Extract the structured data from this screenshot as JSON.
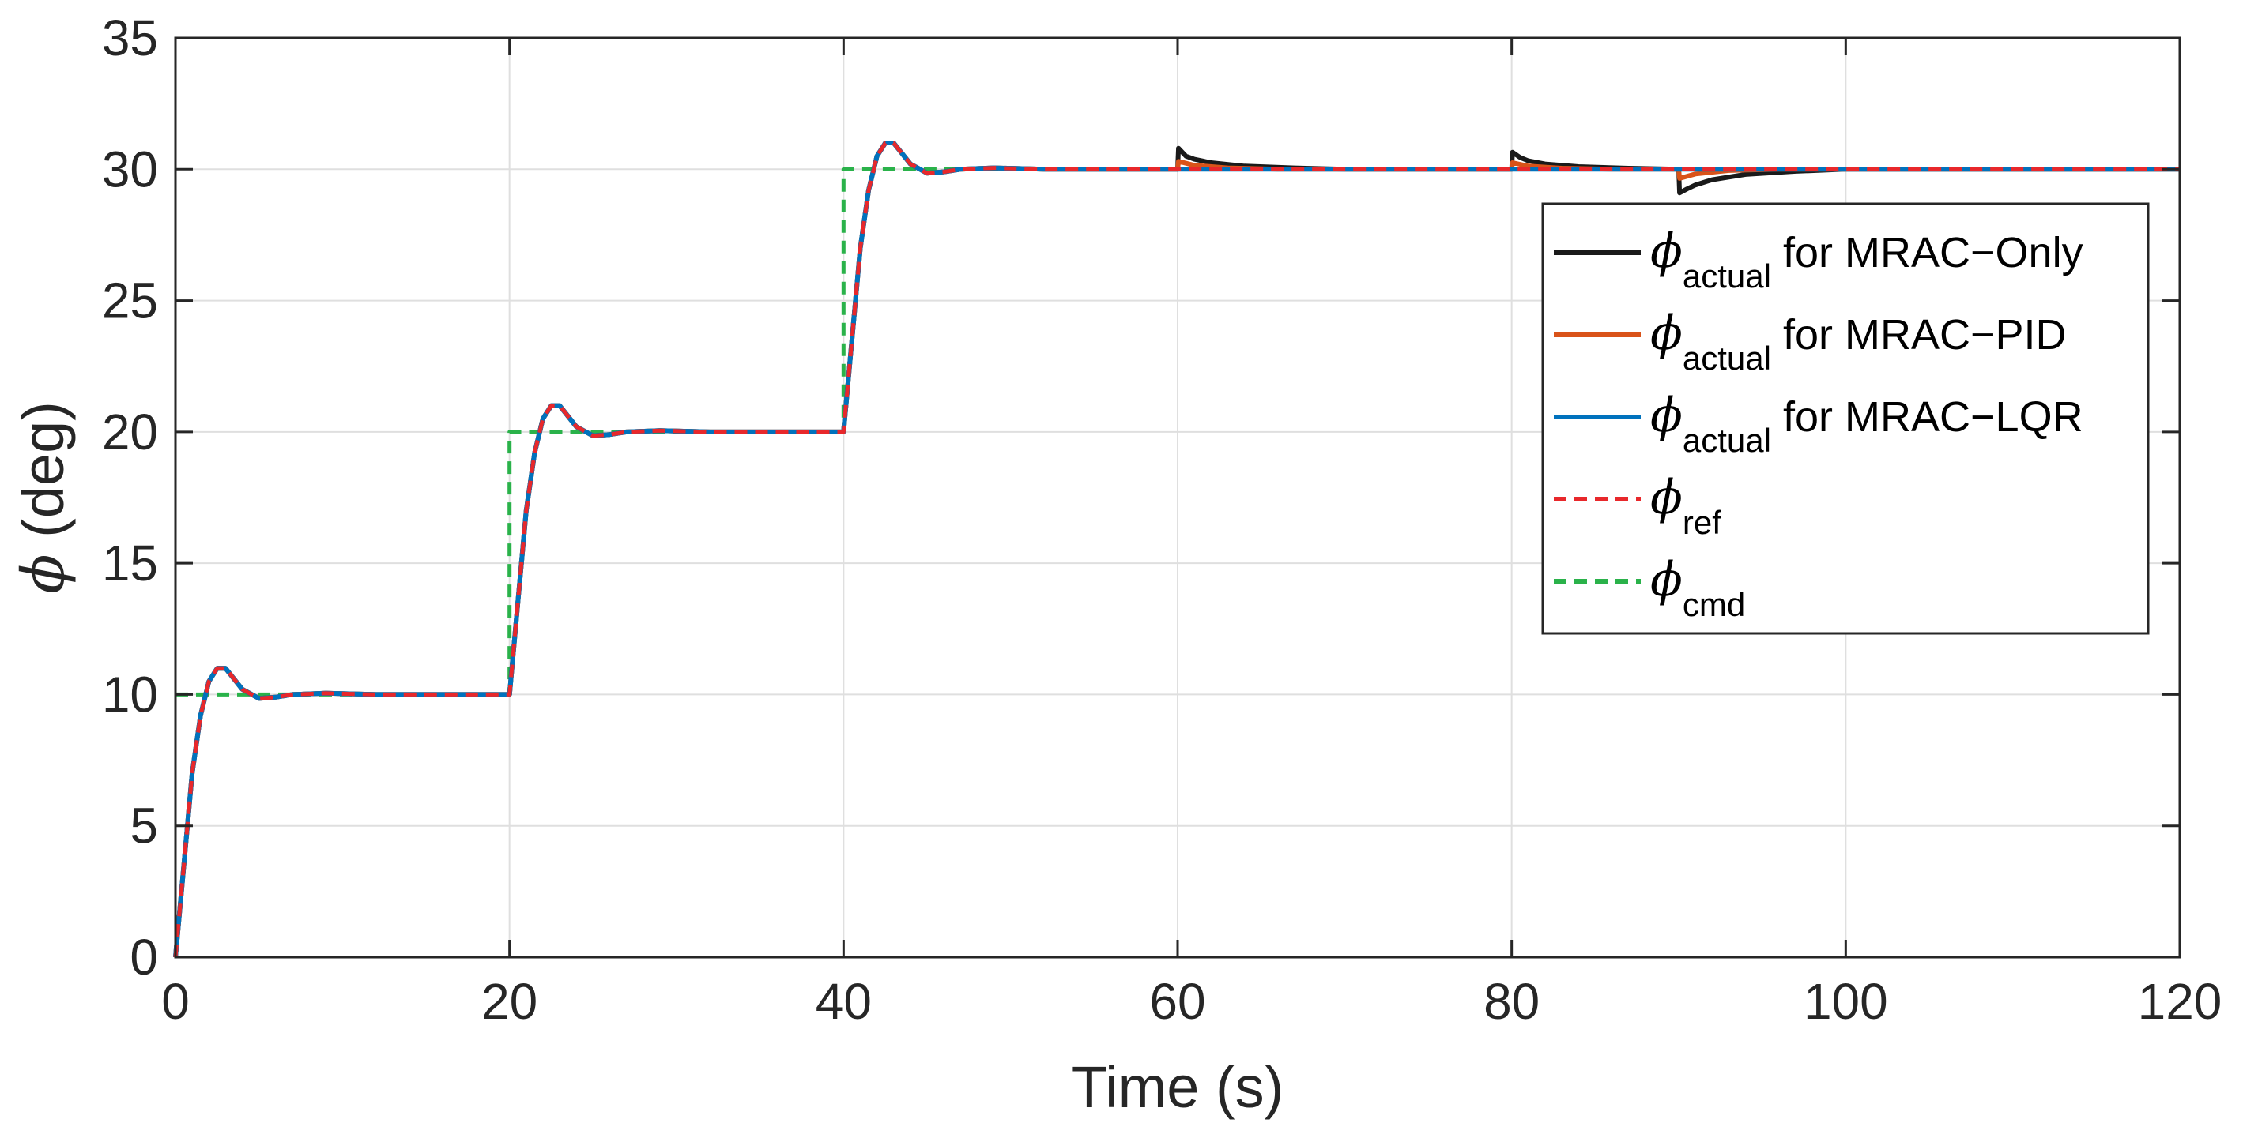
{
  "chart_data": {
    "type": "line",
    "xlabel": "Time (s)",
    "ylabel": {
      "symbol": "ϕ",
      "text": " (deg)"
    },
    "xlim": [
      0,
      120
    ],
    "ylim": [
      0,
      35
    ],
    "xticks": [
      0,
      20,
      40,
      60,
      80,
      100,
      120
    ],
    "yticks": [
      0,
      5,
      10,
      15,
      20,
      25,
      30,
      35
    ],
    "grid": true,
    "legend_position": "right",
    "colors": {
      "mrac_only": "#1a1a1a",
      "mrac_pid": "#d95319",
      "mrac_lqr": "#0072bd",
      "ref": "#e8282b",
      "cmd": "#2ab24a"
    },
    "legend": [
      {
        "key": "mrac_only",
        "symbol": "ϕ",
        "sub": "actual",
        "text": " for MRAC−Only",
        "dashed": false
      },
      {
        "key": "mrac_pid",
        "symbol": "ϕ",
        "sub": "actual",
        "text": " for MRAC−PID",
        "dashed": false
      },
      {
        "key": "mrac_lqr",
        "symbol": "ϕ",
        "sub": "actual",
        "text": " for MRAC−LQR",
        "dashed": false
      },
      {
        "key": "ref",
        "symbol": "ϕ",
        "sub": "ref",
        "text": "",
        "dashed": true
      },
      {
        "key": "cmd",
        "symbol": "ϕ",
        "sub": "cmd",
        "text": "",
        "dashed": true
      }
    ],
    "series": [
      {
        "key": "cmd",
        "dashed": true,
        "x": [
          0,
          20,
          20,
          40,
          40,
          120
        ],
        "y": [
          10,
          10,
          20,
          20,
          30,
          30
        ]
      },
      {
        "key": "mrac_only",
        "dashed": false,
        "x": [
          0,
          0.5,
          1,
          1.5,
          2,
          2.5,
          3,
          3.5,
          4,
          5,
          6,
          7,
          9,
          12,
          20,
          20.5,
          21,
          21.5,
          22,
          22.5,
          23,
          23.5,
          24,
          25,
          26,
          27,
          29,
          32,
          40,
          40.5,
          41,
          41.5,
          42,
          42.5,
          43,
          43.5,
          44,
          45,
          46,
          47,
          49,
          52,
          60,
          60.05,
          60.5,
          61,
          62,
          64,
          67,
          70,
          80,
          80.05,
          80.5,
          81,
          82,
          84,
          87,
          90,
          90.05,
          90.5,
          91,
          92,
          94,
          97,
          100,
          120
        ],
        "y": [
          0,
          3.5,
          7.0,
          9.2,
          10.5,
          11.0,
          11.0,
          10.6,
          10.2,
          9.85,
          9.9,
          10.0,
          10.05,
          10.0,
          10,
          13.5,
          17.0,
          19.2,
          20.5,
          21.0,
          21.0,
          20.6,
          20.2,
          19.85,
          19.9,
          20.0,
          20.05,
          20.0,
          20,
          23.5,
          27.0,
          29.2,
          30.5,
          31.0,
          31.0,
          30.6,
          30.2,
          29.85,
          29.9,
          30.0,
          30.05,
          30.0,
          30,
          30.8,
          30.5,
          30.38,
          30.25,
          30.12,
          30.05,
          30,
          30,
          30.65,
          30.45,
          30.32,
          30.2,
          30.1,
          30.04,
          30,
          29.1,
          29.25,
          29.4,
          29.6,
          29.8,
          29.92,
          30,
          30
        ]
      },
      {
        "key": "mrac_pid",
        "dashed": false,
        "x": [
          0,
          0.5,
          1,
          1.5,
          2,
          2.5,
          3,
          3.5,
          4,
          5,
          6,
          7,
          9,
          12,
          20,
          20.5,
          21,
          21.5,
          22,
          22.5,
          23,
          23.5,
          24,
          25,
          26,
          27,
          29,
          32,
          40,
          40.5,
          41,
          41.5,
          42,
          42.5,
          43,
          43.5,
          44,
          45,
          46,
          47,
          49,
          52,
          60,
          60.05,
          61,
          63,
          66,
          80,
          80.05,
          81,
          83,
          86,
          90,
          90.05,
          91,
          93,
          96,
          120
        ],
        "y": [
          0,
          3.5,
          7.0,
          9.2,
          10.5,
          11.0,
          11.0,
          10.6,
          10.2,
          9.85,
          9.9,
          10.0,
          10.05,
          10.0,
          10,
          13.5,
          17.0,
          19.2,
          20.5,
          21.0,
          21.0,
          20.6,
          20.2,
          19.85,
          19.9,
          20.0,
          20.05,
          20.0,
          20,
          23.5,
          27.0,
          29.2,
          30.5,
          31.0,
          31.0,
          30.6,
          30.2,
          29.85,
          29.9,
          30.0,
          30.05,
          30.0,
          30,
          30.3,
          30.15,
          30.05,
          30,
          30,
          30.25,
          30.12,
          30.04,
          30,
          30,
          29.65,
          29.82,
          29.95,
          30,
          30
        ]
      },
      {
        "key": "mrac_lqr",
        "dashed": false,
        "x": [
          0,
          0.5,
          1,
          1.5,
          2,
          2.5,
          3,
          3.5,
          4,
          5,
          6,
          7,
          9,
          12,
          20,
          20.5,
          21,
          21.5,
          22,
          22.5,
          23,
          23.5,
          24,
          25,
          26,
          27,
          29,
          32,
          40,
          40.5,
          41,
          41.5,
          42,
          42.5,
          43,
          43.5,
          44,
          45,
          46,
          47,
          49,
          52,
          120
        ],
        "y": [
          0,
          3.5,
          7.0,
          9.2,
          10.5,
          11.0,
          11.0,
          10.6,
          10.2,
          9.85,
          9.9,
          10.0,
          10.05,
          10.0,
          10,
          13.5,
          17.0,
          19.2,
          20.5,
          21.0,
          21.0,
          20.6,
          20.2,
          19.85,
          19.9,
          20.0,
          20.05,
          20.0,
          20,
          23.5,
          27.0,
          29.2,
          30.5,
          31.0,
          31.0,
          30.6,
          30.2,
          29.85,
          29.9,
          30.0,
          30.05,
          30.0,
          30
        ]
      },
      {
        "key": "ref",
        "dashed": true,
        "x": [
          0,
          0.5,
          1,
          1.5,
          2,
          2.5,
          3,
          3.5,
          4,
          5,
          6,
          7,
          9,
          12,
          20,
          20.5,
          21,
          21.5,
          22,
          22.5,
          23,
          23.5,
          24,
          25,
          26,
          27,
          29,
          32,
          40,
          40.5,
          41,
          41.5,
          42,
          42.5,
          43,
          43.5,
          44,
          45,
          46,
          47,
          49,
          52,
          120
        ],
        "y": [
          0,
          3.5,
          7.0,
          9.2,
          10.5,
          11.0,
          11.0,
          10.6,
          10.2,
          9.85,
          9.9,
          10.0,
          10.05,
          10.0,
          10,
          13.5,
          17.0,
          19.2,
          20.5,
          21.0,
          21.0,
          20.6,
          20.2,
          19.85,
          19.9,
          20.0,
          20.05,
          20.0,
          20,
          23.5,
          27.0,
          29.2,
          30.5,
          31.0,
          31.0,
          30.6,
          30.2,
          29.85,
          29.9,
          30.0,
          30.05,
          30.0,
          30
        ]
      }
    ]
  }
}
